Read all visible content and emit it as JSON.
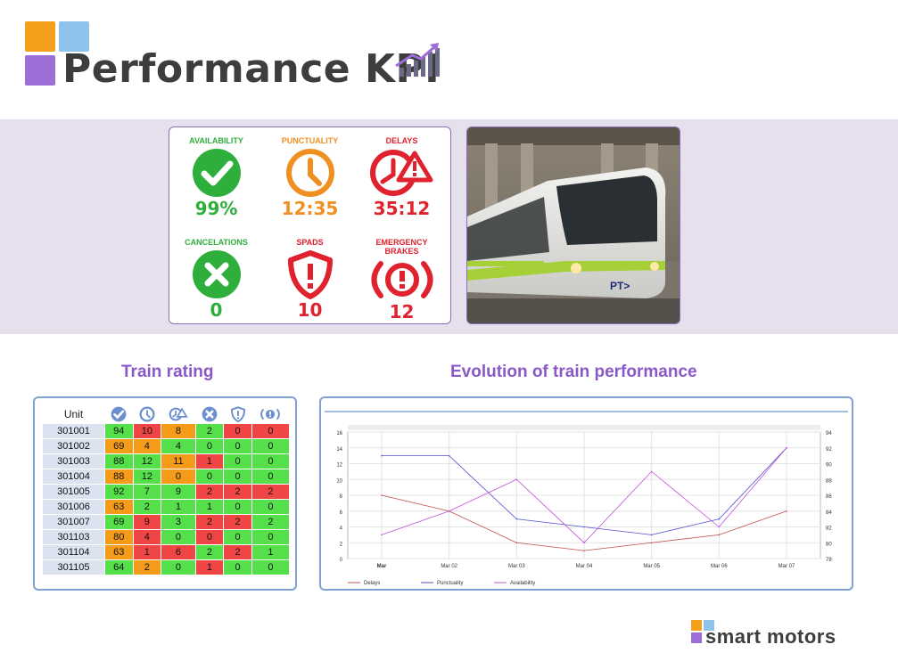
{
  "header": {
    "title": "Performance KPI",
    "icon": "bar-chart-trend-icon"
  },
  "kpis": [
    {
      "label": "AVAILABILITY",
      "value": "99%",
      "color": "#2eaf3c",
      "icon": "check-circle-icon"
    },
    {
      "label": "PUNCTUALITY",
      "value": "12:35",
      "color": "#f09022",
      "icon": "clock-icon"
    },
    {
      "label": "DELAYS",
      "value": "35:12",
      "color": "#e0212e",
      "icon": "delay-warning-icon"
    },
    {
      "label": "CANCELATIONS",
      "value": "0",
      "color": "#2eaf3c",
      "icon": "x-circle-icon"
    },
    {
      "label": "SPADS",
      "value": "10",
      "color": "#e0212e",
      "icon": "shield-warning-icon"
    },
    {
      "label": "EMERGENCY BRAKES",
      "value": "12",
      "color": "#e0212e",
      "icon": "brake-warning-icon"
    }
  ],
  "photo": {
    "icon": "tram-photo",
    "logo_text": "PT>"
  },
  "sections": {
    "rating_title": "Train rating",
    "chart_title": "Evolution of train performance"
  },
  "rating_table": {
    "header": "Unit",
    "column_icons": [
      "check-circle-icon",
      "clock-icon",
      "delay-warning-icon",
      "x-circle-icon",
      "shield-warning-icon",
      "brake-warning-icon"
    ],
    "rows": [
      {
        "unit": "301001",
        "cells": [
          {
            "v": "94",
            "c": "g"
          },
          {
            "v": "10",
            "c": "r"
          },
          {
            "v": "8",
            "c": "o"
          },
          {
            "v": "2",
            "c": "g"
          },
          {
            "v": "0",
            "c": "r"
          },
          {
            "v": "0",
            "c": "r"
          }
        ]
      },
      {
        "unit": "301002",
        "cells": [
          {
            "v": "69",
            "c": "o"
          },
          {
            "v": "4",
            "c": "o"
          },
          {
            "v": "4",
            "c": "g"
          },
          {
            "v": "0",
            "c": "g"
          },
          {
            "v": "0",
            "c": "g"
          },
          {
            "v": "0",
            "c": "g"
          }
        ]
      },
      {
        "unit": "301003",
        "cells": [
          {
            "v": "88",
            "c": "g"
          },
          {
            "v": "12",
            "c": "g"
          },
          {
            "v": "11",
            "c": "o"
          },
          {
            "v": "1",
            "c": "r"
          },
          {
            "v": "0",
            "c": "g"
          },
          {
            "v": "0",
            "c": "g"
          }
        ]
      },
      {
        "unit": "301004",
        "cells": [
          {
            "v": "88",
            "c": "o"
          },
          {
            "v": "12",
            "c": "g"
          },
          {
            "v": "0",
            "c": "o"
          },
          {
            "v": "0",
            "c": "g"
          },
          {
            "v": "0",
            "c": "g"
          },
          {
            "v": "0",
            "c": "g"
          }
        ]
      },
      {
        "unit": "301005",
        "cells": [
          {
            "v": "92",
            "c": "g"
          },
          {
            "v": "7",
            "c": "g"
          },
          {
            "v": "9",
            "c": "g"
          },
          {
            "v": "2",
            "c": "r"
          },
          {
            "v": "2",
            "c": "r"
          },
          {
            "v": "2",
            "c": "r"
          }
        ]
      },
      {
        "unit": "301006",
        "cells": [
          {
            "v": "63",
            "c": "o"
          },
          {
            "v": "2",
            "c": "g"
          },
          {
            "v": "1",
            "c": "g"
          },
          {
            "v": "1",
            "c": "g"
          },
          {
            "v": "0",
            "c": "g"
          },
          {
            "v": "0",
            "c": "g"
          }
        ]
      },
      {
        "unit": "301007",
        "cells": [
          {
            "v": "69",
            "c": "g"
          },
          {
            "v": "9",
            "c": "r"
          },
          {
            "v": "3",
            "c": "g"
          },
          {
            "v": "2",
            "c": "r"
          },
          {
            "v": "2",
            "c": "r"
          },
          {
            "v": "2",
            "c": "g"
          }
        ]
      },
      {
        "unit": "301103",
        "cells": [
          {
            "v": "80",
            "c": "o"
          },
          {
            "v": "4",
            "c": "r"
          },
          {
            "v": "0",
            "c": "g"
          },
          {
            "v": "0",
            "c": "r"
          },
          {
            "v": "0",
            "c": "g"
          },
          {
            "v": "0",
            "c": "g"
          }
        ]
      },
      {
        "unit": "301104",
        "cells": [
          {
            "v": "63",
            "c": "o"
          },
          {
            "v": "1",
            "c": "r"
          },
          {
            "v": "6",
            "c": "r"
          },
          {
            "v": "2",
            "c": "g"
          },
          {
            "v": "2",
            "c": "r"
          },
          {
            "v": "1",
            "c": "g"
          }
        ]
      },
      {
        "unit": "301105",
        "cells": [
          {
            "v": "64",
            "c": "g"
          },
          {
            "v": "2",
            "c": "o"
          },
          {
            "v": "0",
            "c": "g"
          },
          {
            "v": "1",
            "c": "r"
          },
          {
            "v": "0",
            "c": "g"
          },
          {
            "v": "0",
            "c": "g"
          }
        ]
      }
    ]
  },
  "chart_data": {
    "type": "line",
    "title": "",
    "x": [
      "Mar",
      "Mar 02",
      "Mar 03",
      "Mar 04",
      "Mar 05",
      "Mar 06",
      "Mar 07"
    ],
    "ylim_left": [
      0,
      16
    ],
    "yticks_left": [
      "0",
      "2",
      "4",
      "6",
      "8",
      "10",
      "12",
      "14",
      "16"
    ],
    "ylim_right": [
      78,
      94
    ],
    "yticks_right": [
      "78",
      "80",
      "82",
      "84",
      "86",
      "88",
      "90",
      "92",
      "94"
    ],
    "grid": true,
    "legend_position": "bottom-left",
    "series": [
      {
        "name": "Delays",
        "axis": "left",
        "color": "#c0504d",
        "values": [
          8,
          6,
          2,
          1,
          2,
          3,
          6
        ]
      },
      {
        "name": "Punctuality",
        "axis": "left",
        "color": "#4f4fd0",
        "values": [
          13,
          13,
          5,
          4,
          3,
          5,
          14
        ]
      },
      {
        "name": "Availability",
        "axis": "right",
        "color": "#c050d8",
        "values": [
          81,
          84,
          88,
          80,
          89,
          82,
          92
        ]
      }
    ]
  },
  "brand": {
    "name": "smart motors",
    "colors": {
      "orange": "#f5a01a",
      "blue": "#8ec3ec",
      "purple": "#9b6fd6"
    }
  }
}
